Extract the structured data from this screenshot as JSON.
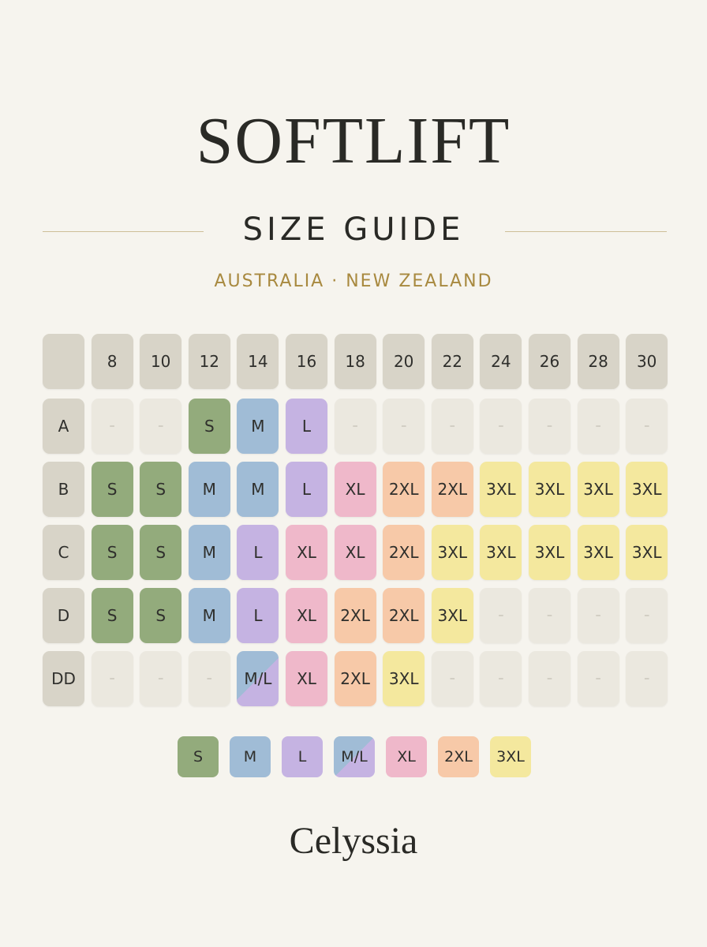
{
  "header": {
    "title": "SOFTLIFT",
    "subtitle": "SIZE GUIDE",
    "region": "AUSTRALIA · NEW ZEALAND"
  },
  "table": {
    "columns": [
      "8",
      "10",
      "12",
      "14",
      "16",
      "18",
      "20",
      "22",
      "24",
      "26",
      "28",
      "30"
    ],
    "rows": [
      {
        "label": "A",
        "cells": [
          "–",
          "–",
          "S",
          "M",
          "L",
          "–",
          "–",
          "–",
          "–",
          "–",
          "–",
          "–"
        ]
      },
      {
        "label": "B",
        "cells": [
          "S",
          "S",
          "M",
          "M",
          "L",
          "XL",
          "2XL",
          "2XL",
          "3XL",
          "3XL",
          "3XL",
          "3XL"
        ]
      },
      {
        "label": "C",
        "cells": [
          "S",
          "S",
          "M",
          "L",
          "XL",
          "XL",
          "2XL",
          "3XL",
          "3XL",
          "3XL",
          "3XL",
          "3XL"
        ]
      },
      {
        "label": "D",
        "cells": [
          "S",
          "S",
          "M",
          "L",
          "XL",
          "2XL",
          "2XL",
          "3XL",
          "–",
          "–",
          "–",
          "–"
        ]
      },
      {
        "label": "DD",
        "cells": [
          "–",
          "–",
          "–",
          "M/L",
          "XL",
          "2XL",
          "3XL",
          "–",
          "–",
          "–",
          "–",
          "–"
        ]
      }
    ]
  },
  "legend": [
    {
      "label": "S",
      "color": "#93ab7c"
    },
    {
      "label": "M",
      "color": "#a0bcd6"
    },
    {
      "label": "L",
      "color": "#c5b3e2"
    },
    {
      "label": "M/L",
      "color": "linear-gradient(135deg, #a0bcd6 50%, #c5b3e2 50%)"
    },
    {
      "label": "XL",
      "color": "#efb8ca"
    },
    {
      "label": "2XL",
      "color": "#f7c9a8"
    },
    {
      "label": "3XL",
      "color": "#f4e89e"
    }
  ],
  "brand": "Celyssia"
}
